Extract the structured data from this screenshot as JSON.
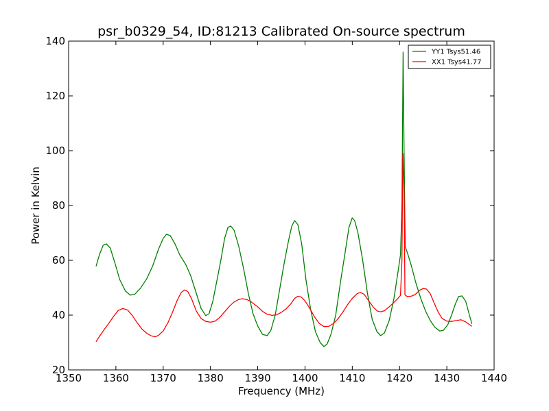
{
  "chart_data": {
    "type": "line",
    "title": "psr_b0329_54, ID:81213 Calibrated On-source spectrum",
    "xlabel": "Frequency (MHz)",
    "ylabel": "Power in Kelvin",
    "xlim": [
      1350,
      1440
    ],
    "ylim": [
      20,
      140
    ],
    "xticks": [
      "1350",
      "1360",
      "1370",
      "1380",
      "1390",
      "1400",
      "1410",
      "1420",
      "1430",
      "1440"
    ],
    "yticks": [
      "20",
      "40",
      "60",
      "80",
      "100",
      "120",
      "140"
    ],
    "grid": false,
    "legend_position": "top-right",
    "series": [
      {
        "name": "YY1 Tsys51.46",
        "color": "#008000",
        "points": [
          [
            1355.8,
            57.8
          ],
          [
            1356.5,
            62
          ],
          [
            1357.3,
            65.5
          ],
          [
            1358,
            66
          ],
          [
            1358.8,
            64.5
          ],
          [
            1359.8,
            59
          ],
          [
            1360.8,
            53
          ],
          [
            1362,
            48.8
          ],
          [
            1363,
            47.3
          ],
          [
            1364,
            47.6
          ],
          [
            1365.2,
            49.8
          ],
          [
            1366.5,
            53.2
          ],
          [
            1367.8,
            58
          ],
          [
            1369,
            64
          ],
          [
            1370,
            68
          ],
          [
            1370.7,
            69.5
          ],
          [
            1371.5,
            69
          ],
          [
            1372.5,
            66
          ],
          [
            1373.5,
            62
          ],
          [
            1374.8,
            58.4
          ],
          [
            1375.8,
            54.5
          ],
          [
            1377,
            48
          ],
          [
            1378,
            42.5
          ],
          [
            1379,
            39.8
          ],
          [
            1379.7,
            40.5
          ],
          [
            1380.5,
            45
          ],
          [
            1381.3,
            52
          ],
          [
            1382.2,
            60
          ],
          [
            1383,
            68
          ],
          [
            1383.7,
            72
          ],
          [
            1384.3,
            72.5
          ],
          [
            1385,
            71
          ],
          [
            1386,
            65
          ],
          [
            1387,
            57
          ],
          [
            1388,
            48
          ],
          [
            1389,
            40.5
          ],
          [
            1390,
            36
          ],
          [
            1391,
            33
          ],
          [
            1392,
            32.5
          ],
          [
            1392.8,
            34.5
          ],
          [
            1393.7,
            40
          ],
          [
            1394.5,
            48
          ],
          [
            1395.5,
            58
          ],
          [
            1396.5,
            67
          ],
          [
            1397.2,
            72.5
          ],
          [
            1397.8,
            74.5
          ],
          [
            1398.5,
            73
          ],
          [
            1399.3,
            66
          ],
          [
            1400.2,
            53
          ],
          [
            1401.2,
            42
          ],
          [
            1402.2,
            34
          ],
          [
            1403.2,
            30
          ],
          [
            1404,
            28.5
          ],
          [
            1404.7,
            29.5
          ],
          [
            1405.5,
            33
          ],
          [
            1406.5,
            40
          ],
          [
            1407.5,
            52
          ],
          [
            1408.5,
            63
          ],
          [
            1409.3,
            72
          ],
          [
            1410,
            75.5
          ],
          [
            1410.5,
            74.5
          ],
          [
            1411.2,
            70
          ],
          [
            1412.2,
            60
          ],
          [
            1413.2,
            48
          ],
          [
            1414.2,
            38.5
          ],
          [
            1415.2,
            34
          ],
          [
            1416,
            32.5
          ],
          [
            1416.8,
            33.5
          ],
          [
            1417.8,
            38
          ],
          [
            1418.8,
            46
          ],
          [
            1419.6,
            55
          ],
          [
            1420.2,
            62
          ],
          [
            1420.5,
            80
          ],
          [
            1420.75,
            136
          ],
          [
            1420.95,
            100
          ],
          [
            1421.2,
            65
          ],
          [
            1421.8,
            62
          ],
          [
            1422.5,
            58
          ],
          [
            1423.5,
            51.5
          ],
          [
            1424.5,
            46
          ],
          [
            1425.5,
            41.5
          ],
          [
            1426.5,
            38
          ],
          [
            1427.5,
            35.5
          ],
          [
            1428.5,
            34.2
          ],
          [
            1429.3,
            34.5
          ],
          [
            1430.2,
            36.5
          ],
          [
            1431,
            40
          ],
          [
            1431.8,
            44
          ],
          [
            1432.5,
            46.8
          ],
          [
            1433.2,
            47
          ],
          [
            1434,
            45
          ],
          [
            1434.7,
            40.5
          ],
          [
            1435.3,
            36.8
          ]
        ]
      },
      {
        "name": "XX1 Tsys41.77",
        "color": "#ff0000",
        "points": [
          [
            1355.8,
            30.3
          ],
          [
            1356.5,
            32.2
          ],
          [
            1357.5,
            34.7
          ],
          [
            1358.5,
            37
          ],
          [
            1359.5,
            39.5
          ],
          [
            1360.5,
            41.7
          ],
          [
            1361.5,
            42.4
          ],
          [
            1362.5,
            41.8
          ],
          [
            1363.5,
            39.8
          ],
          [
            1364.5,
            37.2
          ],
          [
            1365.5,
            34.9
          ],
          [
            1366.5,
            33.4
          ],
          [
            1367.5,
            32.4
          ],
          [
            1368.3,
            32.1
          ],
          [
            1369,
            32.6
          ],
          [
            1370,
            34.2
          ],
          [
            1371,
            37.2
          ],
          [
            1372,
            41.2
          ],
          [
            1373,
            45.5
          ],
          [
            1373.8,
            48.2
          ],
          [
            1374.5,
            49.2
          ],
          [
            1375.2,
            48.6
          ],
          [
            1376,
            46
          ],
          [
            1377,
            41.5
          ],
          [
            1378,
            38.8
          ],
          [
            1379,
            37.7
          ],
          [
            1380,
            37.4
          ],
          [
            1381,
            37.8
          ],
          [
            1382,
            39.2
          ],
          [
            1383,
            41.2
          ],
          [
            1384,
            43.2
          ],
          [
            1385,
            44.8
          ],
          [
            1386,
            45.7
          ],
          [
            1386.8,
            46
          ],
          [
            1387.8,
            45.6
          ],
          [
            1388.8,
            44.6
          ],
          [
            1390,
            43
          ],
          [
            1391,
            41.4
          ],
          [
            1392,
            40.3
          ],
          [
            1393,
            39.9
          ],
          [
            1394,
            40.1
          ],
          [
            1395,
            41
          ],
          [
            1396,
            42.3
          ],
          [
            1397,
            44.1
          ],
          [
            1397.8,
            46.1
          ],
          [
            1398.5,
            46.9
          ],
          [
            1399.2,
            46.6
          ],
          [
            1400,
            45.2
          ],
          [
            1401,
            42.5
          ],
          [
            1402,
            39.4
          ],
          [
            1403,
            37
          ],
          [
            1404,
            35.8
          ],
          [
            1405,
            35.9
          ],
          [
            1406,
            36.9
          ],
          [
            1407,
            38.7
          ],
          [
            1408,
            41.1
          ],
          [
            1409,
            43.8
          ],
          [
            1410,
            46.1
          ],
          [
            1411,
            47.8
          ],
          [
            1411.7,
            48.3
          ],
          [
            1412.5,
            47.6
          ],
          [
            1413.5,
            45.2
          ],
          [
            1414.5,
            42.8
          ],
          [
            1415.3,
            41.5
          ],
          [
            1416,
            41.2
          ],
          [
            1416.8,
            41.6
          ],
          [
            1417.8,
            43
          ],
          [
            1418.8,
            44.6
          ],
          [
            1419.6,
            46
          ],
          [
            1420.2,
            47.2
          ],
          [
            1420.5,
            60
          ],
          [
            1420.7,
            99
          ],
          [
            1420.95,
            85
          ],
          [
            1421.15,
            47.4
          ],
          [
            1421.6,
            46.8
          ],
          [
            1422.5,
            46.9
          ],
          [
            1423.3,
            47.5
          ],
          [
            1424.2,
            49
          ],
          [
            1425,
            49.7
          ],
          [
            1425.7,
            49.5
          ],
          [
            1426.5,
            47.8
          ],
          [
            1427.3,
            44.5
          ],
          [
            1428.2,
            41
          ],
          [
            1429,
            38.8
          ],
          [
            1430,
            37.8
          ],
          [
            1431,
            37.7
          ],
          [
            1432,
            38
          ],
          [
            1433,
            38.3
          ],
          [
            1434,
            37.5
          ],
          [
            1435.3,
            35.9
          ]
        ]
      }
    ]
  }
}
